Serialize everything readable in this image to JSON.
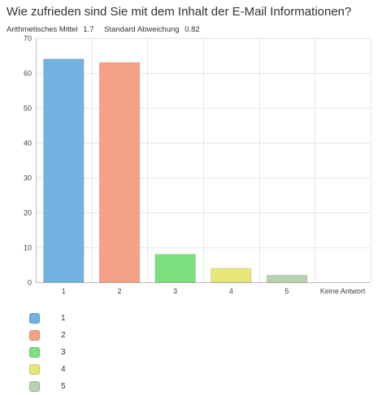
{
  "title": "Wie zufrieden sind Sie mit dem Inhalt der E-Mail Informationen?",
  "stats": {
    "mean_label": "Arithmetisches Mittel",
    "mean_value": "1.7",
    "sd_label": "Standard Abweichung",
    "sd_value": "0.82"
  },
  "chart_data": {
    "type": "bar",
    "categories": [
      "1",
      "2",
      "3",
      "4",
      "5",
      "Keine Antwort"
    ],
    "values": [
      64,
      63,
      8,
      4,
      2,
      0
    ],
    "colors": [
      "#72b2e0",
      "#f4a287",
      "#7ce07c",
      "#e8e87a",
      "#b7d2b0",
      "#cccccc"
    ],
    "ylim": [
      0,
      70
    ],
    "yticks": [
      0,
      10,
      20,
      30,
      40,
      50,
      60,
      70
    ],
    "grid": true,
    "legend": {
      "position": "bottom-left",
      "entries": [
        "1",
        "2",
        "3",
        "4",
        "5"
      ]
    }
  }
}
